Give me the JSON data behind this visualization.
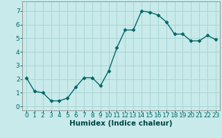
{
  "x": [
    0,
    1,
    2,
    3,
    4,
    5,
    6,
    7,
    8,
    9,
    10,
    11,
    12,
    13,
    14,
    15,
    16,
    17,
    18,
    19,
    20,
    21,
    22,
    23
  ],
  "y": [
    2.1,
    1.1,
    1.0,
    0.4,
    0.4,
    0.6,
    1.4,
    2.1,
    2.1,
    1.5,
    2.6,
    4.3,
    5.6,
    5.6,
    7.0,
    6.9,
    6.7,
    6.2,
    5.3,
    5.3,
    4.8,
    4.8,
    5.2,
    4.9
  ],
  "line_color": "#006666",
  "marker": "D",
  "marker_size": 2.5,
  "bg_color": "#c8eaea",
  "grid_color": "#aad4d4",
  "xlabel": "Humidex (Indice chaleur)",
  "ylim": [
    -0.3,
    7.7
  ],
  "xlim": [
    -0.5,
    23.5
  ],
  "yticks": [
    0,
    1,
    2,
    3,
    4,
    5,
    6,
    7
  ],
  "xticks": [
    0,
    1,
    2,
    3,
    4,
    5,
    6,
    7,
    8,
    9,
    10,
    11,
    12,
    13,
    14,
    15,
    16,
    17,
    18,
    19,
    20,
    21,
    22,
    23
  ],
  "tick_label_fontsize": 6.5,
  "xlabel_fontsize": 7.5,
  "linewidth": 1.0
}
